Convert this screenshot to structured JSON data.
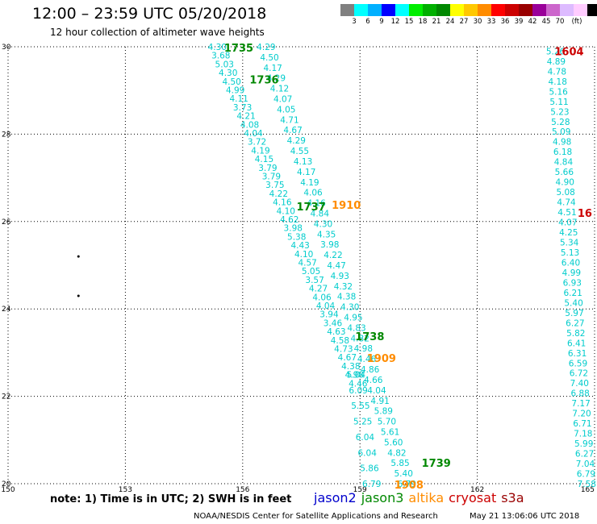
{
  "header": {
    "title": "12:00 – 23:59 UTC 05/20/2018",
    "subtitle": "12 hour collection of altimeter wave heights"
  },
  "legend": {
    "unit": "(ft)",
    "colors": [
      "#808080",
      "#00ffff",
      "#00b0ff",
      "#0000ff",
      "#00ffff",
      "#00ee00",
      "#00b000",
      "#008800",
      "#ffff00",
      "#ffc800",
      "#ff8c00",
      "#ff0000",
      "#cc0000",
      "#990000",
      "#990099",
      "#cc66cc",
      "#ddbbff",
      "#ffccff",
      "#000000"
    ],
    "labels": [
      "3",
      "6",
      "9",
      "12",
      "15",
      "18",
      "21",
      "24",
      "27",
      "30",
      "33",
      "36",
      "39",
      "42",
      "45",
      "70"
    ]
  },
  "axes": {
    "x_ticks": [
      "150",
      "153",
      "156",
      "159",
      "162",
      "165"
    ],
    "y_ticks": [
      "30",
      "28",
      "26",
      "24",
      "22",
      "20"
    ]
  },
  "tracks": [
    {
      "name": "jason3-1735-1736",
      "color": "#00cccc",
      "lon_start": 155.35,
      "lat_start": 30.0,
      "lon_end": 158.95,
      "lat_end": 22.3,
      "values": [
        "4.30",
        "3.68",
        "5.03",
        "4.30",
        "4.50",
        "4.99",
        "4.11",
        "3.73",
        "4.21",
        "4.08",
        "4.04",
        "3.72",
        "4.19",
        "4.15",
        "3.79",
        "3.79",
        "3.75",
        "4.22",
        "4.16",
        "4.10",
        "4.62",
        "3.98",
        "5.38",
        "4.43",
        "4.10",
        "4.57",
        "5.05",
        "3.57",
        "4.27",
        "4.06",
        "4.04",
        "3.94",
        "3.46",
        "4.63",
        "4.58",
        "4.73",
        "4.67",
        "4.38",
        "4.98",
        "4.46"
      ]
    },
    {
      "name": "jason3-1737-1739",
      "color": "#00cccc",
      "lon_start": 156.6,
      "lat_start": 30.0,
      "lon_end": 160.2,
      "lat_end": 20.0,
      "values": [
        "4.29",
        "4.50",
        "4.17",
        "4.29",
        "4.12",
        "4.07",
        "4.05",
        "4.71",
        "4.67",
        "4.29",
        "4.55",
        "4.13",
        "4.17",
        "4.19",
        "4.06",
        "4.16",
        "4.84",
        "4.30",
        "4.35",
        "3.98",
        "4.22",
        "4.47",
        "4.93",
        "4.32",
        "4.38",
        "4.30",
        "4.95",
        "4.83",
        "4.82",
        "4.98",
        "4.46",
        "4.86",
        "4.66",
        "4.04",
        "4.91",
        "5.89",
        "5.70",
        "5.61",
        "5.60",
        "4.82",
        "5.85",
        "5.40",
        "6.79"
      ]
    },
    {
      "name": "jason3-1738-left",
      "color": "#00cccc",
      "lon_start": 158.9,
      "lat_start": 22.5,
      "lon_end": 159.3,
      "lat_end": 20.0,
      "values": [
        "5.04",
        "6.09",
        "5.55",
        "5.25",
        "6.04",
        "6.04",
        "5.86",
        "6.79"
      ]
    },
    {
      "name": "cryosat-1604",
      "color": "#00cccc",
      "lon_start": 164.0,
      "lat_start": 29.9,
      "lon_end": 164.8,
      "lat_end": 20.0,
      "values": [
        "5.26",
        "4.89",
        "4.78",
        "4.18",
        "5.16",
        "5.11",
        "5.23",
        "5.28",
        "5.09",
        "4.98",
        "6.18",
        "4.84",
        "5.66",
        "4.90",
        "5.08",
        "4.74",
        "4.51",
        "4.07",
        "4.25",
        "5.34",
        "5.13",
        "6.40",
        "4.99",
        "6.93",
        "6.21",
        "5.40",
        "5.97",
        "6.27",
        "5.82",
        "6.41",
        "6.31",
        "6.59",
        "6.72",
        "7.40",
        "6.88",
        "7.17",
        "7.20",
        "6.71",
        "7.18",
        "5.99",
        "6.27",
        "7.04",
        "6.79",
        "7.58"
      ]
    }
  ],
  "passes": [
    {
      "label": "1735",
      "color": "#008800",
      "lon": 155.9,
      "lat": 29.98
    },
    {
      "label": "1736",
      "color": "#008800",
      "lon": 156.55,
      "lat": 29.25
    },
    {
      "label": "1737",
      "color": "#008800",
      "lon": 157.75,
      "lat": 26.35
    },
    {
      "label": "1910",
      "color": "#ff8c00",
      "lon": 158.65,
      "lat": 26.38
    },
    {
      "label": "1738",
      "color": "#008800",
      "lon": 159.25,
      "lat": 23.38
    },
    {
      "label": "1909",
      "color": "#ff8c00",
      "lon": 159.55,
      "lat": 22.88
    },
    {
      "label": "1739",
      "color": "#008800",
      "lon": 160.95,
      "lat": 20.48
    },
    {
      "label": "1908",
      "color": "#ff8c00",
      "lon": 160.25,
      "lat": 19.98
    },
    {
      "label": "1604",
      "color": "#cc0000",
      "lon": 164.35,
      "lat": 29.9
    },
    {
      "label": "16",
      "color": "#cc0000",
      "lon": 164.75,
      "lat": 26.2
    }
  ],
  "dots": [
    {
      "lon": 151.8,
      "lat": 25.2
    },
    {
      "lon": 151.8,
      "lat": 24.3
    }
  ],
  "note": "note:  1) Time is in UTC;  2) SWH is in feet",
  "satellites": [
    {
      "name": "jason2",
      "color": "#0000cc"
    },
    {
      "name": "jason3",
      "color": "#008800"
    },
    {
      "name": "altika",
      "color": "#ff8c00"
    },
    {
      "name": "cryosat",
      "color": "#cc0000"
    },
    {
      "name": "s3a",
      "color": "#990000"
    }
  ],
  "footer": {
    "center": "NOAA/NESDIS Center for Satellite Applications and Research",
    "right": "May 21 13:06:06 UTC 2018"
  }
}
